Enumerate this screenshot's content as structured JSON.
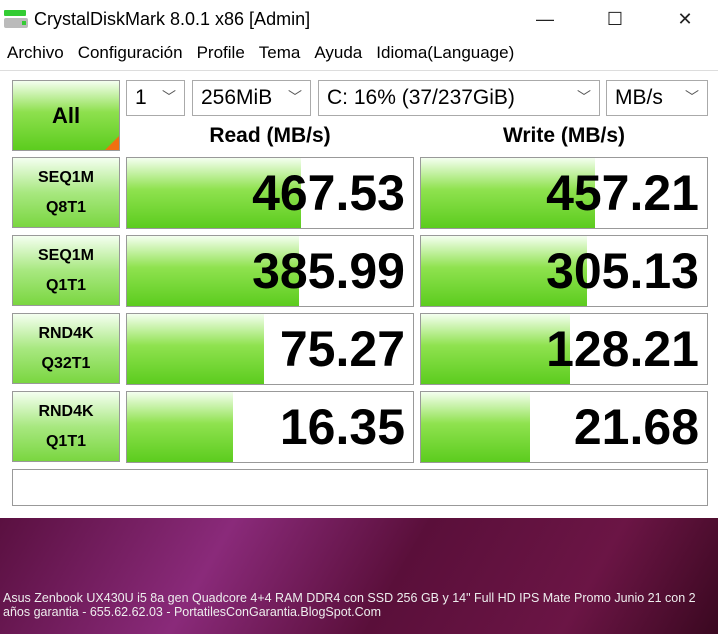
{
  "window": {
    "title": "CrystalDiskMark 8.0.1 x86 [Admin]",
    "minimize": "—",
    "maximize": "☐",
    "close": "✕"
  },
  "menu": [
    "Archivo",
    "Configuración",
    "Profile",
    "Tema",
    "Ayuda",
    "Idioma(Language)"
  ],
  "controls": {
    "all_label": "All",
    "count": "1",
    "size": "256MiB",
    "drive": "C: 16% (37/237GiB)",
    "unit": "MB/s",
    "chevron": "﹀"
  },
  "headers": {
    "read": "Read (MB/s)",
    "write": "Write (MB/s)"
  },
  "tests": [
    {
      "line1": "SEQ1M",
      "line2": "Q8T1",
      "read": "467.53",
      "write": "457.21",
      "read_fill": 0.61,
      "write_fill": 0.61
    },
    {
      "line1": "SEQ1M",
      "line2": "Q1T1",
      "read": "385.99",
      "write": "305.13",
      "read_fill": 0.6,
      "write_fill": 0.58
    },
    {
      "line1": "RND4K",
      "line2": "Q32T1",
      "read": "75.27",
      "write": "128.21",
      "read_fill": 0.48,
      "write_fill": 0.52
    },
    {
      "line1": "RND4K",
      "line2": "Q1T1",
      "read": "16.35",
      "write": "21.68",
      "read_fill": 0.37,
      "write_fill": 0.38
    }
  ],
  "comment": "",
  "desktop_caption": "Asus Zenbook UX430U i5 8a gen Quadcore 4+4 RAM DDR4 con SSD 256 GB y 14\" Full HD IPS Mate  Promo Junio 21 con 2 años garantia - 655.62.62.03 - PortatilesConGarantia.BlogSpot.Com"
}
